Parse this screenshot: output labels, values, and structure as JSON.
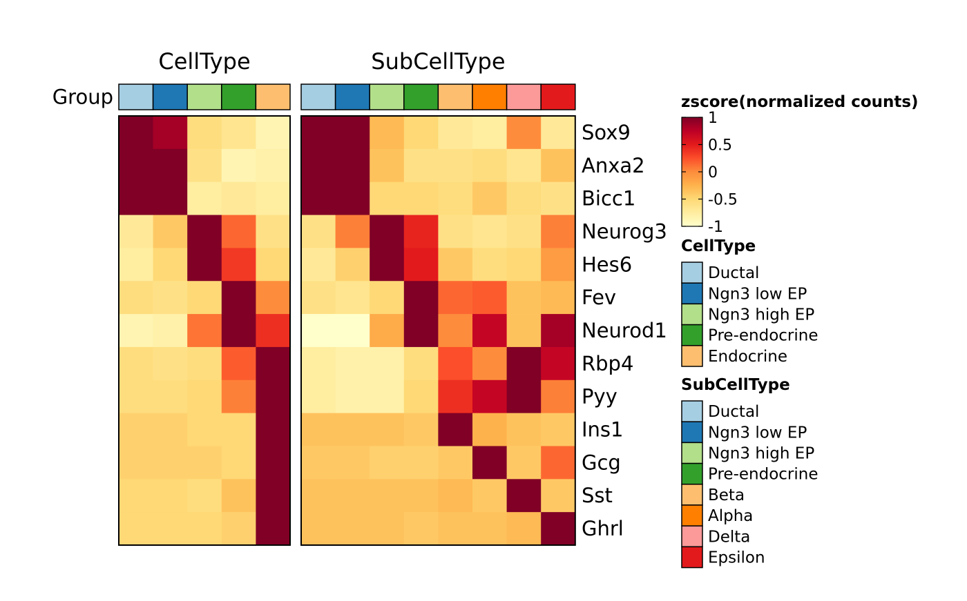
{
  "chart_data": {
    "type": "heatmap",
    "row_annotation_label": "Group",
    "rows": [
      "Sox9",
      "Anxa2",
      "Bicc1",
      "Neurog3",
      "Hes6",
      "Fev",
      "Neurod1",
      "Rbp4",
      "Pyy",
      "Ins1",
      "Gcg",
      "Sst",
      "Ghrl"
    ],
    "value_range": [
      -1,
      1
    ],
    "colorscale": [
      "#FFFFCC",
      "#FFEDA0",
      "#FED976",
      "#FEB24C",
      "#FD8D3C",
      "#FC4E2A",
      "#E31A1C",
      "#BD0026",
      "#800026"
    ],
    "panels": [
      {
        "title": "CellType",
        "columns": [
          "Ductal",
          "Ngn3 low EP",
          "Ngn3 high EP",
          "Pre-endocrine",
          "Endocrine"
        ],
        "column_colors": [
          "#A6CEE3",
          "#1F78B4",
          "#B2DF8A",
          "#33A02C",
          "#FDBF6F"
        ],
        "values": [
          [
            1.0,
            0.85,
            -0.55,
            -0.65,
            -0.85
          ],
          [
            1.0,
            1.0,
            -0.6,
            -0.85,
            -0.8
          ],
          [
            1.0,
            1.0,
            -0.75,
            -0.7,
            -0.75
          ],
          [
            -0.7,
            -0.4,
            1.0,
            0.15,
            -0.6
          ],
          [
            -0.75,
            -0.5,
            1.0,
            0.35,
            -0.5
          ],
          [
            -0.55,
            -0.6,
            -0.5,
            1.0,
            0.0
          ],
          [
            -0.85,
            -0.8,
            0.1,
            1.0,
            0.4
          ],
          [
            -0.55,
            -0.6,
            -0.55,
            0.2,
            1.0
          ],
          [
            -0.55,
            -0.55,
            -0.5,
            0.05,
            1.0
          ],
          [
            -0.45,
            -0.45,
            -0.5,
            -0.5,
            1.0
          ],
          [
            -0.45,
            -0.45,
            -0.45,
            -0.5,
            1.0
          ],
          [
            -0.5,
            -0.5,
            -0.55,
            -0.35,
            1.0
          ],
          [
            -0.5,
            -0.5,
            -0.5,
            -0.45,
            1.0
          ]
        ]
      },
      {
        "title": "SubCellType",
        "columns": [
          "Ductal",
          "Ngn3 low EP",
          "Ngn3 high EP",
          "Pre-endocrine",
          "Beta",
          "Alpha",
          "Delta",
          "Epsilon"
        ],
        "column_colors": [
          "#A6CEE3",
          "#1F78B4",
          "#B2DF8A",
          "#33A02C",
          "#FDBF6F",
          "#FF7F00",
          "#FB9A99",
          "#E31A1C"
        ],
        "values": [
          [
            1.0,
            1.0,
            -0.3,
            -0.5,
            -0.7,
            -0.75,
            0.0,
            -0.7
          ],
          [
            1.0,
            1.0,
            -0.35,
            -0.6,
            -0.6,
            -0.55,
            -0.65,
            -0.35
          ],
          [
            1.0,
            1.0,
            -0.5,
            -0.5,
            -0.55,
            -0.4,
            -0.55,
            -0.6
          ],
          [
            -0.6,
            0.05,
            1.0,
            0.45,
            -0.6,
            -0.65,
            -0.6,
            0.05
          ],
          [
            -0.7,
            -0.45,
            1.0,
            0.5,
            -0.4,
            -0.55,
            -0.5,
            -0.1
          ],
          [
            -0.6,
            -0.65,
            -0.5,
            1.0,
            0.15,
            0.2,
            -0.35,
            -0.3
          ],
          [
            -1.0,
            -1.0,
            -0.2,
            1.0,
            0.0,
            0.7,
            -0.35,
            0.85
          ],
          [
            -0.75,
            -0.8,
            -0.8,
            -0.55,
            0.25,
            0.0,
            1.0,
            0.7
          ],
          [
            -0.75,
            -0.8,
            -0.8,
            -0.5,
            0.4,
            0.7,
            1.0,
            0.05
          ],
          [
            -0.35,
            -0.35,
            -0.35,
            -0.4,
            1.0,
            -0.25,
            -0.35,
            -0.4
          ],
          [
            -0.4,
            -0.4,
            -0.45,
            -0.45,
            -0.4,
            1.0,
            -0.4,
            0.15
          ],
          [
            -0.35,
            -0.35,
            -0.35,
            -0.35,
            -0.3,
            -0.4,
            1.0,
            -0.4
          ],
          [
            -0.35,
            -0.35,
            -0.35,
            -0.4,
            -0.35,
            -0.35,
            -0.3,
            1.0
          ]
        ]
      }
    ],
    "colorbar": {
      "title": "zscore(normalized counts)",
      "ticks": [
        1,
        0.5,
        0,
        -0.5,
        -1
      ],
      "tick_labels": [
        "1",
        "0.5",
        "0",
        "-0.5",
        "-1"
      ]
    },
    "legends": [
      {
        "title": "CellType",
        "items": [
          {
            "label": "Ductal",
            "color": "#A6CEE3"
          },
          {
            "label": "Ngn3 low EP",
            "color": "#1F78B4"
          },
          {
            "label": "Ngn3 high EP",
            "color": "#B2DF8A"
          },
          {
            "label": "Pre-endocrine",
            "color": "#33A02C"
          },
          {
            "label": "Endocrine",
            "color": "#FDBF6F"
          }
        ]
      },
      {
        "title": "SubCellType",
        "items": [
          {
            "label": "Ductal",
            "color": "#A6CEE3"
          },
          {
            "label": "Ngn3 low EP",
            "color": "#1F78B4"
          },
          {
            "label": "Ngn3 high EP",
            "color": "#B2DF8A"
          },
          {
            "label": "Pre-endocrine",
            "color": "#33A02C"
          },
          {
            "label": "Beta",
            "color": "#FDBF6F"
          },
          {
            "label": "Alpha",
            "color": "#FF7F00"
          },
          {
            "label": "Delta",
            "color": "#FB9A99"
          },
          {
            "label": "Epsilon",
            "color": "#E31A1C"
          }
        ]
      }
    ]
  }
}
